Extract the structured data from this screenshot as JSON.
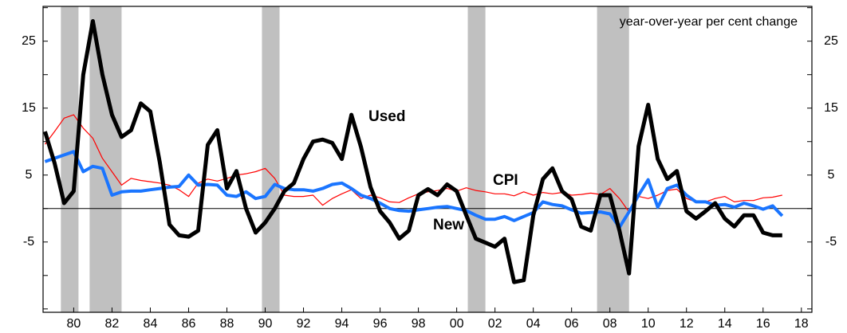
{
  "chart_data": {
    "type": "line",
    "annotation": "year-over-year per cent change",
    "x": [
      1978.5,
      1979,
      1979.5,
      1980,
      1980.5,
      1981,
      1981.5,
      1982,
      1982.5,
      1983,
      1983.5,
      1984,
      1984.5,
      1985,
      1985.5,
      1986,
      1986.5,
      1987,
      1987.5,
      1988,
      1988.5,
      1989,
      1989.5,
      1990,
      1990.5,
      1991,
      1991.5,
      1992,
      1992.5,
      1993,
      1993.5,
      1994,
      1994.5,
      1995,
      1995.5,
      1996,
      1996.5,
      1997,
      1997.5,
      1998,
      1998.5,
      1999,
      1999.5,
      2000,
      2000.5,
      2001,
      2001.5,
      2002,
      2002.5,
      2003,
      2003.5,
      2004,
      2004.5,
      2005,
      2005.5,
      2006,
      2006.5,
      2007,
      2007.5,
      2008,
      2008.5,
      2009,
      2009.5,
      2010,
      2010.5,
      2011,
      2011.5,
      2012,
      2012.5,
      2013,
      2013.5,
      2014,
      2014.5,
      2015,
      2015.5,
      2016,
      2016.5,
      2017
    ],
    "series": [
      {
        "name": "Used",
        "color": "#000000",
        "width": 5,
        "values": [
          11.5,
          6.8,
          0.8,
          2.6,
          20,
          28,
          20,
          14,
          10.7,
          11.7,
          15.7,
          14.5,
          6.8,
          -2.4,
          -4,
          -4.2,
          -3.3,
          9.5,
          11.7,
          3,
          5.6,
          0,
          -3.6,
          -2.1,
          0,
          2.6,
          3.8,
          7.4,
          10,
          10.3,
          9.8,
          7.4,
          14,
          9.2,
          3.2,
          -0.4,
          -2.1,
          -4.5,
          -3.3,
          2,
          2.9,
          2,
          3.6,
          2.6,
          -1,
          -4.5,
          -5.1,
          -5.7,
          -4.5,
          -11,
          -10.7,
          -1,
          4.4,
          6,
          2.6,
          1.4,
          -2.7,
          -3.3,
          2,
          2,
          -3.3,
          -9.7,
          9.3,
          15.5,
          7.4,
          4.4,
          5.6,
          -0.4,
          -1.5,
          -0.4,
          0.8,
          -1.5,
          -2.7,
          -1,
          -1,
          -3.6,
          -4,
          -4
        ]
      },
      {
        "name": "CPI",
        "color": "#ff0000",
        "width": 1.2,
        "values": [
          9.6,
          11.5,
          13.5,
          14,
          12,
          10.5,
          7.5,
          5.5,
          3.5,
          4.5,
          4.2,
          4,
          3.8,
          3.5,
          2.8,
          1.8,
          3.8,
          4.4,
          4.1,
          4.5,
          5,
          5.2,
          5.5,
          6,
          4.5,
          2,
          1.8,
          1.8,
          2,
          0.5,
          1.5,
          2.2,
          2.8,
          1.5,
          2,
          1.6,
          1,
          0.9,
          1.6,
          2.2,
          2.5,
          2.7,
          3,
          2.6,
          3.1,
          2.7,
          2.5,
          2.2,
          2.2,
          1.9,
          2.5,
          2,
          2.4,
          2.2,
          2.4,
          2,
          2.1,
          2.3,
          2.1,
          3,
          1.5,
          -0.5,
          1.8,
          1.5,
          2,
          2.7,
          2.9,
          1.5,
          1,
          1,
          1.5,
          1.8,
          1,
          1.2,
          1.2,
          1.6,
          1.7,
          2
        ]
      },
      {
        "name": "New",
        "color": "#1a75ff",
        "width": 4,
        "values": [
          7,
          7.5,
          8,
          8.5,
          5.5,
          6.3,
          6,
          2,
          2.5,
          2.6,
          2.6,
          2.8,
          3,
          3.2,
          3.3,
          5,
          3.5,
          3.6,
          3.5,
          2,
          1.8,
          2.5,
          1.5,
          1.8,
          3.6,
          3,
          2.8,
          2.8,
          2.6,
          3,
          3.6,
          3.8,
          3,
          2,
          1.5,
          0.8,
          0,
          -0.3,
          -0.4,
          -0.2,
          0,
          0.2,
          0.3,
          0,
          -0.3,
          -1,
          -1.6,
          -1.6,
          -1.2,
          -1.8,
          -1.2,
          -0.6,
          1,
          0.6,
          0.4,
          -0.2,
          -0.7,
          -0.6,
          -0.5,
          -0.8,
          -2.8,
          -0.5,
          2,
          4.3,
          0.2,
          3,
          3.5,
          2,
          1,
          1,
          0.5,
          0.6,
          0.2,
          0.8,
          0.4,
          -0.1,
          0.4,
          -1.1
        ]
      }
    ],
    "recessions": [
      [
        1979.33,
        1980.25
      ],
      [
        1980.83,
        1982.5
      ],
      [
        1989.83,
        1990.75
      ],
      [
        2000.58,
        2001.5
      ],
      [
        2007.33,
        2009.0
      ]
    ],
    "recession_color": "#c0c0c0",
    "xlim": [
      1978.4,
      2018.55
    ],
    "xticks": [
      {
        "value": 1980,
        "label": "80"
      },
      {
        "value": 1982,
        "label": "82"
      },
      {
        "value": 1984,
        "label": "84"
      },
      {
        "value": 1986,
        "label": "86"
      },
      {
        "value": 1988,
        "label": "88"
      },
      {
        "value": 1990,
        "label": "90"
      },
      {
        "value": 1992,
        "label": "92"
      },
      {
        "value": 1994,
        "label": "94"
      },
      {
        "value": 1996,
        "label": "96"
      },
      {
        "value": 1998,
        "label": "98"
      },
      {
        "value": 2000,
        "label": "00"
      },
      {
        "value": 2002,
        "label": "02"
      },
      {
        "value": 2004,
        "label": "04"
      },
      {
        "value": 2006,
        "label": "06"
      },
      {
        "value": 2008,
        "label": "08"
      },
      {
        "value": 2010,
        "label": "10"
      },
      {
        "value": 2012,
        "label": "12"
      },
      {
        "value": 2014,
        "label": "14"
      },
      {
        "value": 2016,
        "label": "16"
      },
      {
        "value": 2018,
        "label": "18"
      }
    ],
    "ylim": [
      -15.5,
      30.2
    ],
    "yticks": [
      -5,
      5,
      15,
      25
    ],
    "yminor_ticks": [
      -15,
      -10,
      0,
      10,
      20,
      30
    ],
    "zero_line": 0
  }
}
